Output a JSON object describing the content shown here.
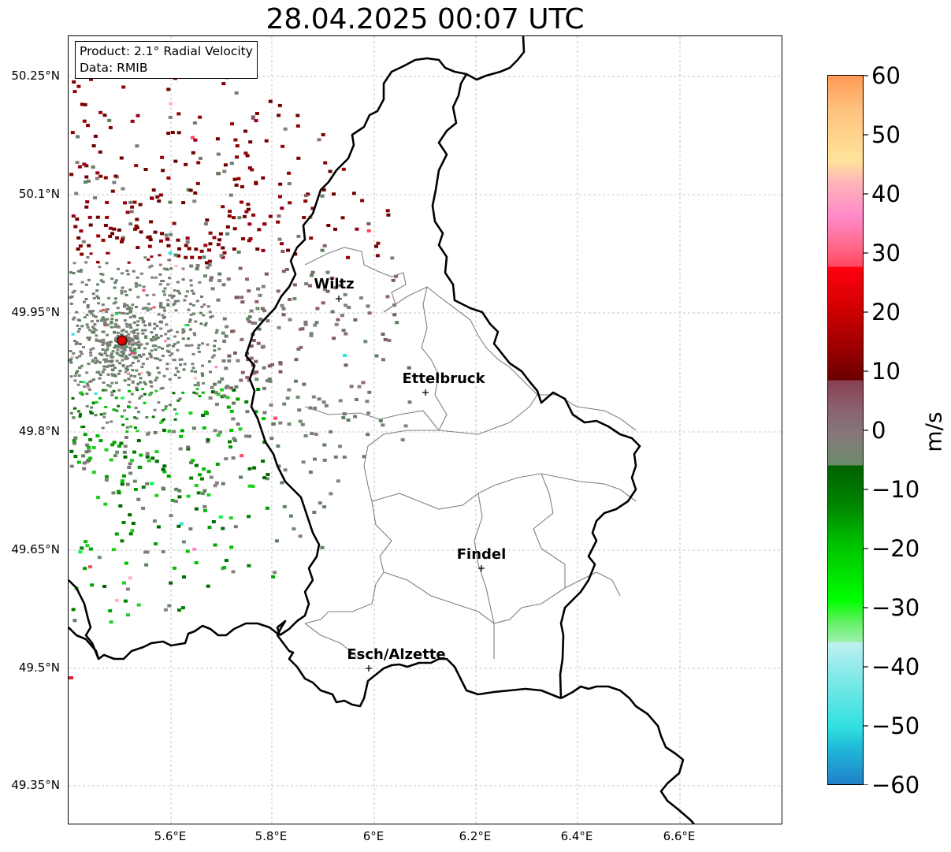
{
  "title": "28.04.2025 00:07 UTC",
  "info": {
    "product": "Product: 2.1° Radial Velocity",
    "data": "Data: RMIB"
  },
  "lat_ticks": [
    "50.25°N",
    "50.1°N",
    "49.95°N",
    "49.8°N",
    "49.65°N",
    "49.5°N",
    "49.35°N"
  ],
  "lon_ticks": [
    "5.6°E",
    "5.8°E",
    "6°E",
    "6.2°E",
    "6.4°E",
    "6.6°E"
  ],
  "cities": [
    {
      "name": "Wiltz"
    },
    {
      "name": "Ettelbruck"
    },
    {
      "name": "Findel"
    },
    {
      "name": "Esch/Alzette"
    }
  ],
  "colorbar": {
    "label": "m/s",
    "ticks": [
      "60",
      "50",
      "40",
      "30",
      "20",
      "10",
      "0",
      "−10",
      "−20",
      "−30",
      "−40",
      "−50",
      "−60"
    ],
    "range": [
      -60,
      60
    ]
  },
  "colors": {
    "radar_site": "#e00000",
    "border": "#000000",
    "canton_lines": "#808080",
    "gridlines": "#b0b0b0"
  }
}
